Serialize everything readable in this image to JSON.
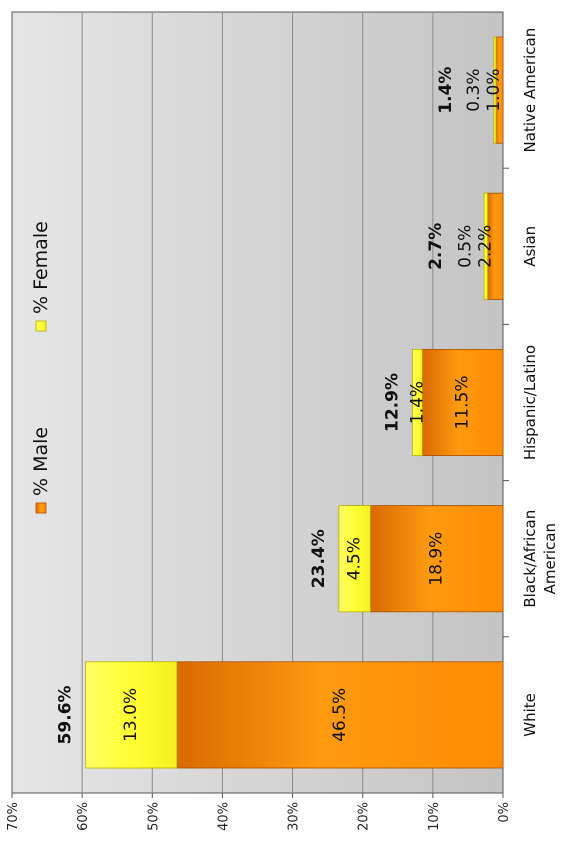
{
  "chart_data": {
    "type": "bar",
    "stacked": true,
    "orientation": "vertical, page rotated 90 degrees clockwise",
    "categories": [
      "White",
      "Black/African American",
      "Hispanic/Latino",
      "Asian",
      "Native American"
    ],
    "series": [
      {
        "name": "% Male",
        "values": [
          46.5,
          18.9,
          11.5,
          2.2,
          1.0
        ],
        "labels": [
          "46.5%",
          "18.9%",
          "11.5%",
          "2.2%",
          "1.0%"
        ],
        "color": "#FF9900"
      },
      {
        "name": "% Female",
        "values": [
          13.0,
          4.5,
          1.4,
          0.5,
          0.3
        ],
        "labels": [
          "13.0%",
          "4.5%",
          "1.4%",
          "0.5%",
          "0.3%"
        ],
        "color": "#FFFF33"
      }
    ],
    "totals": [
      "59.6%",
      "23.4%",
      "12.9%",
      "2.7%",
      "1.4%"
    ],
    "ylim": [
      0,
      70
    ],
    "yticks": [
      "0%",
      "10%",
      "20%",
      "30%",
      "40%",
      "50%",
      "60%",
      "70%"
    ],
    "grid": true,
    "legend_position": "top"
  }
}
